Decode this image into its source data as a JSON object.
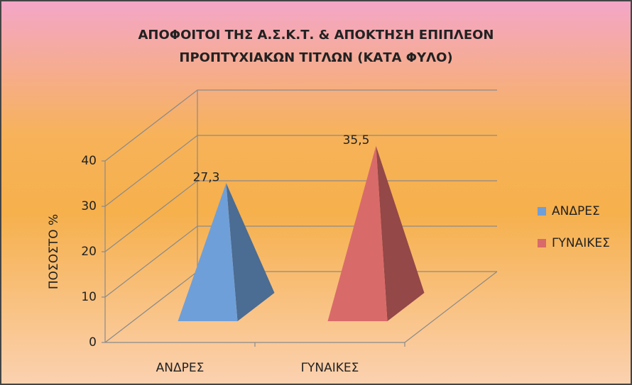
{
  "chart_data": {
    "type": "bar",
    "title": [
      "ΑΠΟΦΟΙΤΟΙ ΤΗΣ Α.Σ.Κ.Τ. & ΑΠΟΚΤΗΣΗ ΕΠΙΠΛΕΟΝ",
      "ΠΡΟΠΤΥΧΙΑΚΩΝ ΤΙΤΛΩΝ (ΚΑΤΑ ΦΥΛΟ)"
    ],
    "y_label": "ΠΟΣΟΣΤΟ %",
    "categories": [
      "ΑΝΔΡΕΣ",
      "ΓΥΝΑΙΚΕΣ"
    ],
    "series": [
      {
        "name": "ΑΝΔΡΕΣ",
        "color": "#6f9fd8",
        "values": [
          27.3,
          null
        ],
        "value_labels": [
          "27,3",
          null
        ]
      },
      {
        "name": "ΓΥΝΑΙΚΕΣ",
        "color": "#d96a6a",
        "values": [
          null,
          35.5
        ],
        "value_labels": [
          null,
          "35,5"
        ]
      }
    ],
    "ylim": [
      0,
      40
    ],
    "yticks": [
      0,
      10,
      20,
      30,
      40
    ],
    "grid": true,
    "legend": "right"
  }
}
